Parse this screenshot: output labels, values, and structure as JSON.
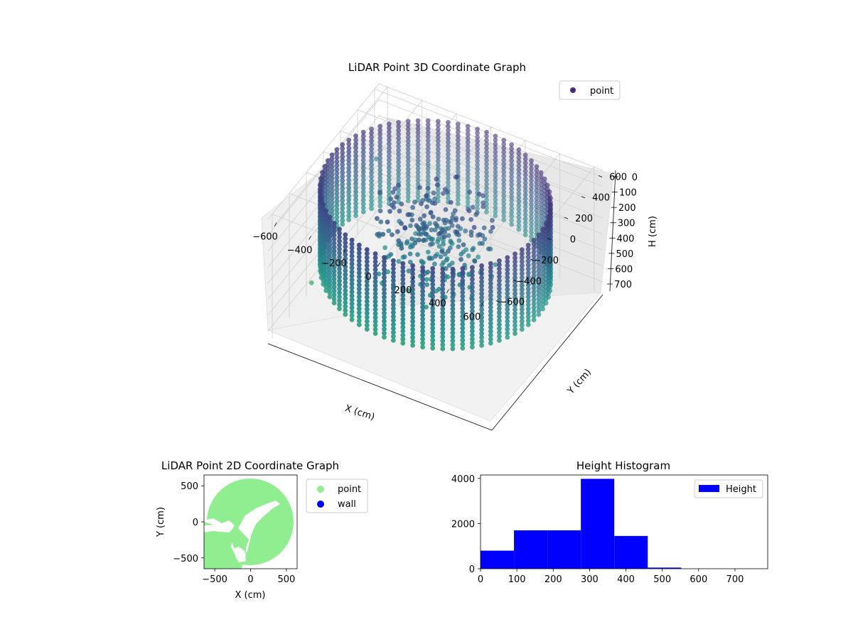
{
  "chart_data": [
    {
      "type": "scatter",
      "projection": "3d",
      "title": "LiDAR Point 3D Coordinate Graph",
      "xlabel": "X (cm)",
      "ylabel": "Y (cm)",
      "zlabel": "H (cm)",
      "xticks": [
        "−600",
        "−400",
        "−200",
        "0",
        "200",
        "400",
        "600"
      ],
      "yticks": [
        "−600",
        "−400",
        "−200",
        "0",
        "200",
        "400",
        "600"
      ],
      "zticks": [
        "0",
        "100",
        "200",
        "300",
        "400",
        "500",
        "600",
        "700"
      ],
      "xlim": [
        -650,
        650
      ],
      "ylim": [
        -650,
        650
      ],
      "zlim": [
        0,
        780
      ],
      "z_inverted": true,
      "grid": true,
      "legend": {
        "position": "top-right",
        "entries": [
          "point"
        ]
      },
      "colormap": "viridis",
      "description": "Cylindrical ring of points, radius ~600 cm, heights ~0-500 cm, with interior clutter near the center",
      "series": [
        {
          "name": "point",
          "ring_radius": 600,
          "height_range": [
            0,
            500
          ],
          "color": "#482878"
        }
      ],
      "outliers": [
        {
          "x": -620,
          "y": 560,
          "h": 400
        },
        {
          "x": -620,
          "y": -200,
          "h": 680
        }
      ]
    },
    {
      "type": "scatter",
      "title": "LiDAR Point 2D Coordinate Graph",
      "xlabel": "X (cm)",
      "ylabel": "Y (cm)",
      "xticks": [
        "−500",
        "0",
        "500"
      ],
      "yticks": [
        "500",
        "0",
        "−500"
      ],
      "xlim": [
        -650,
        650
      ],
      "ylim": [
        -650,
        650
      ],
      "legend": {
        "position": "outside-right",
        "entries": [
          "point",
          "wall"
        ]
      },
      "series": [
        {
          "name": "point",
          "color": "#90ee90",
          "shape": "filled disc radius ~600 cm with gaps on the left side"
        },
        {
          "name": "wall",
          "color": "#0000ff",
          "points": []
        }
      ]
    },
    {
      "type": "bar",
      "title": "Height Histogram",
      "xticks": [
        "0",
        "100",
        "200",
        "300",
        "400",
        "500",
        "600",
        "700"
      ],
      "yticks": [
        "0",
        "2000",
        "4000"
      ],
      "xlim": [
        0,
        790
      ],
      "ylim": [
        0,
        4150
      ],
      "legend": {
        "position": "top-right",
        "entries": [
          "Height"
        ]
      },
      "series": [
        {
          "name": "Height",
          "color": "#0000ff",
          "bins": [
            {
              "start": 0,
              "end": 92,
              "count": 800
            },
            {
              "start": 92,
              "end": 184,
              "count": 1700
            },
            {
              "start": 184,
              "end": 276,
              "count": 1700
            },
            {
              "start": 276,
              "end": 368,
              "count": 3980
            },
            {
              "start": 368,
              "end": 460,
              "count": 1450
            },
            {
              "start": 460,
              "end": 552,
              "count": 50
            },
            {
              "start": 552,
              "end": 644,
              "count": 0
            },
            {
              "start": 644,
              "end": 736,
              "count": 0
            },
            {
              "start": 736,
              "end": 790,
              "count": 0
            }
          ]
        }
      ]
    }
  ]
}
